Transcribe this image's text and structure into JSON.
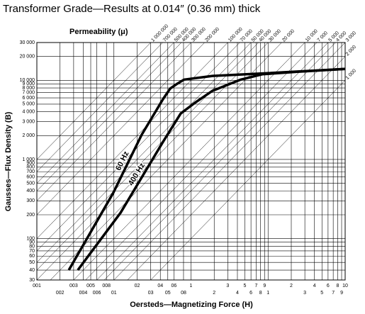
{
  "chart_data": {
    "type": "line",
    "title": "Transformer Grade—Results at 0.014″ (0.36 mm) thick",
    "permeability_label": "Permeability (μ)",
    "x_label": "Oersteds—Magnetizing Force (H)",
    "y_label": "Gausses—Flux Density (B)",
    "log_x": true,
    "log_y": true,
    "grid": true,
    "xlim": [
      0.001,
      10
    ],
    "ylim": [
      30,
      30000
    ],
    "xticks": [
      {
        "value": 0.001,
        "label": "001"
      },
      {
        "value": 0.002,
        "label": "002"
      },
      {
        "value": 0.003,
        "label": "003"
      },
      {
        "value": 0.004,
        "label": "004"
      },
      {
        "value": 0.005,
        "label": "005"
      },
      {
        "value": 0.006,
        "label": "006"
      },
      {
        "value": 0.008,
        "label": "008"
      },
      {
        "value": 0.01,
        "label": "01"
      },
      {
        "value": 0.02,
        "label": "02"
      },
      {
        "value": 0.03,
        "label": "03"
      },
      {
        "value": 0.04,
        "label": "04"
      },
      {
        "value": 0.05,
        "label": "05"
      },
      {
        "value": 0.06,
        "label": "06"
      },
      {
        "value": 0.08,
        "label": "08"
      },
      {
        "value": 0.1,
        "label": "1"
      },
      {
        "value": 0.2,
        "label": "2"
      },
      {
        "value": 0.3,
        "label": "3"
      },
      {
        "value": 0.4,
        "label": "4"
      },
      {
        "value": 0.5,
        "label": "5"
      },
      {
        "value": 0.6,
        "label": "6"
      },
      {
        "value": 0.7,
        "label": "7"
      },
      {
        "value": 0.8,
        "label": "8"
      },
      {
        "value": 0.9,
        "label": "9"
      },
      1,
      2,
      3,
      4,
      5,
      6,
      7,
      8,
      9,
      10
    ],
    "yticks": [
      30,
      40,
      50,
      60,
      70,
      80,
      90,
      100,
      200,
      300,
      400,
      500,
      600,
      700,
      800,
      900,
      {
        "value": 1000,
        "label": "1 000"
      },
      {
        "value": 2000,
        "label": "2 000"
      },
      {
        "value": 3000,
        "label": "3 000"
      },
      {
        "value": 4000,
        "label": "4 000"
      },
      {
        "value": 5000,
        "label": "5 000"
      },
      {
        "value": 6000,
        "label": "6 000"
      },
      {
        "value": 7000,
        "label": "7 000"
      },
      {
        "value": 8000,
        "label": "8 000"
      },
      {
        "value": 9000,
        "label": "9 000"
      },
      {
        "value": 10000,
        "label": "10 000"
      },
      {
        "value": 20000,
        "label": "20 000"
      },
      {
        "value": 30000,
        "label": "30 000"
      }
    ],
    "permeability_lines": [
      {
        "value": 1000000,
        "label": "1 000 000"
      },
      {
        "value": 700000,
        "label": "700 000"
      },
      {
        "value": 500000,
        "label": "500 000"
      },
      {
        "value": 400000,
        "label": "400 000"
      },
      {
        "value": 300000,
        "label": "300 000"
      },
      {
        "value": 200000,
        "label": "200 000"
      },
      {
        "value": 100000,
        "label": "100 000"
      },
      {
        "value": 70000,
        "label": "70 000"
      },
      {
        "value": 50000,
        "label": "50 000"
      },
      {
        "value": 40000,
        "label": "40 000"
      },
      {
        "value": 30000,
        "label": "30 000"
      },
      {
        "value": 20000,
        "label": "20 000"
      },
      {
        "value": 10000,
        "label": "10 000"
      },
      {
        "value": 7000,
        "label": "7 000"
      },
      {
        "value": 5000,
        "label": "5 000"
      },
      {
        "value": 4000,
        "label": "4 000"
      },
      {
        "value": 3000,
        "label": "3 000"
      },
      {
        "value": 2000,
        "label": "2 000"
      },
      {
        "value": 1000,
        "label": "1 000"
      }
    ],
    "series": [
      {
        "name": "60 Hz",
        "color": "#000000",
        "x": [
          0.0026,
          0.0098,
          0.0229,
          0.0433,
          0.0536,
          0.066,
          0.0815,
          0.19,
          0.84,
          10
        ],
        "values": [
          40,
          378,
          2050,
          5780,
          7830,
          9040,
          10200,
          11350,
          12200,
          13900
        ]
      },
      {
        "name": "400 Hz",
        "color": "#000000",
        "x": [
          0.0034,
          0.0122,
          0.0433,
          0.0736,
          0.112,
          0.19,
          0.443,
          0.84,
          2.4,
          10
        ],
        "values": [
          40,
          212,
          1670,
          3810,
          5190,
          7370,
          10200,
          11900,
          12800,
          13900
        ]
      }
    ]
  }
}
